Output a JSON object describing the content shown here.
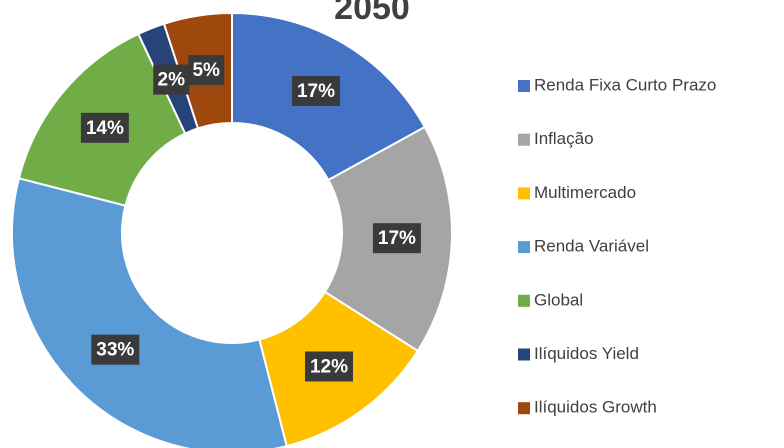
{
  "chart_data": {
    "type": "donut",
    "title": "2050",
    "categories": [
      "Renda Fixa Curto Prazo",
      "Inflação",
      "Multimercado",
      "Renda Variável",
      "Global",
      "Ilíquidos Yield",
      "Ilíquidos Growth"
    ],
    "values": [
      17,
      17,
      12,
      33,
      14,
      2,
      5
    ],
    "value_labels": [
      "17%",
      "17%",
      "12%",
      "33%",
      "14%",
      "2%",
      "5%"
    ],
    "colors": [
      "#4472c4",
      "#a5a5a5",
      "#ffc000",
      "#5b9bd5",
      "#70ad47",
      "#264478",
      "#9e480e"
    ],
    "legend": "right"
  }
}
